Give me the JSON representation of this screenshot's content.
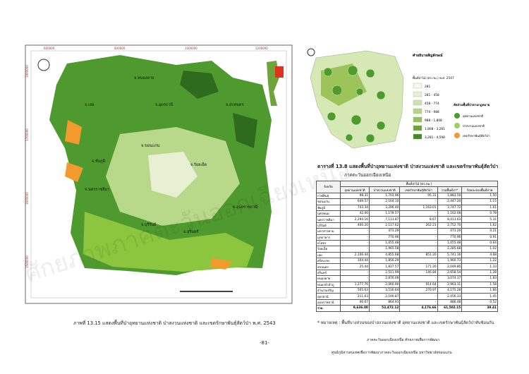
{
  "figure": {
    "caption": "ภาพที่ 13.15 แสดงพื้นที่ป่าอุทยานแห่งชาติ ป่าสงวนแห่งชาติ และเขตรักษาพันธุ์สัตว์ป่า พ.ศ. 2543",
    "coords_top": [
      "600000",
      "800000",
      "1000000",
      "1200000"
    ],
    "coords_left": [
      "1900000",
      "1700000",
      "1600000",
      "1500000"
    ],
    "places": [
      "จ.เลย",
      "จ.หนองคาย",
      "จ.อุดรธานี",
      "จ.สกลนคร",
      "จ.ขอนแก่น",
      "จ.ชัยภูมิ",
      "จ.ร้อยเอ็ด",
      "จ.นครราชสีมา",
      "จ.บุรีรัมย์",
      "จ.สุรินทร์",
      "จ.อุบลราชธานี"
    ]
  },
  "inset": {
    "legend_title": "คำอธิบายสัญลักษณ์",
    "legend_sub": "พื้นที่ป่าไม้ (ตร.กม.) พ.ศ. 2547",
    "ranges": [
      "281",
      "281 - 458",
      "458 - 774",
      "774 - 988",
      "988 - 1,808",
      "1,808 - 3,281",
      "3,281 - 4,598"
    ],
    "pie_title": "สัดส่วนพื้นที่ป่าตามกฎหมาย",
    "pie_items": [
      "อุทยานแห่งชาติ",
      "ป่าสงวนแห่งชาติ",
      "เขตรักษาพันธุ์สัตว์ป่า"
    ]
  },
  "table": {
    "title": "ตารางที่ 13.8 แสดงพื้นที่ป่าอุทยานแห่งชาติ ป่าสงวนแห่งชาติ และเขตรักษาพันธุ์สัตว์ป่า",
    "subtitle": "ภาคตะวันออกเฉียงเหนือ",
    "head1": [
      "จังหวัด",
      "พื้นที่ป่าไม้ (ตร.กม.)"
    ],
    "head2": [
      "อุทยานแห่งชาติ",
      "ป่าสงวนแห่งชาติ",
      "เขตรักษาพันธุ์สัตว์ป่า",
      "รวมพื้นที่ป่า*",
      "ร้อยละของพื้นที่ภาค"
    ],
    "rows": [
      [
        "กาฬสินธุ์",
        "98.31",
        "1,703.96",
        "95.31",
        "1,883.59",
        "1.50"
      ],
      [
        "ขอนแก่น",
        "649.57",
        "2,164.10",
        "-",
        "2,447.20",
        "1.15"
      ],
      [
        "ชัยภูมิ",
        "743.34",
        "3,296.40",
        "1,163.01",
        "3,747.72",
        "1.61"
      ],
      [
        "นครพนม",
        "42.00",
        "1,178.57",
        "-",
        "1,162.08",
        "0.78"
      ],
      [
        "นครราชสีมา",
        "2,294.16",
        "7,113.87",
        "8.67",
        "8,413.63",
        "5.31"
      ],
      [
        "บุรีรัมย์",
        "400.20",
        "2,117.62",
        "262.21",
        "2,752.70",
        "1.62"
      ],
      [
        "มหาสารคาม",
        "-",
        "473.29",
        "-",
        "473.29",
        "0.21"
      ],
      [
        "มุกดาหาร",
        "-",
        "770.96",
        "-",
        "770.96",
        "0.91"
      ],
      [
        "ยโสธร",
        "-",
        "1,055.48",
        "-",
        "1,055.48",
        "0.64"
      ],
      [
        "ร้อยเอ็ด",
        "-",
        "1,965.58",
        "-",
        "2,285.68",
        "1.02"
      ],
      [
        "เลย",
        "2,106.44",
        "4,855.68",
        "851.20",
        "5,741.16",
        "4.68"
      ],
      [
        "ศรีสะเกษ",
        "104.44",
        "1,856.29",
        "-",
        "1,960.73",
        "1.22"
      ],
      [
        "สกลนคร",
        "25.44",
        "1,837.57",
        "171.20",
        "2,049.80",
        "1.33"
      ],
      [
        "สุรินทร์",
        "-",
        "2,511.99",
        "146.84",
        "2,658.54",
        "1.28"
      ],
      [
        "หนองคาย",
        "-",
        "2,876.09",
        "-",
        "3,074.17",
        "1.83"
      ],
      [
        "หนองบัวลำภู",
        "1,277.76",
        "2,060.90",
        "914.64",
        "2,963.31",
        "1.58"
      ],
      [
        "อำนาจเจริญ",
        "505.63",
        "3,516.64",
        "270.97",
        "4,175.28",
        "1.66"
      ],
      [
        "อุดรธานี",
        "211.63",
        "2,190.87",
        "-",
        "2,456.33",
        "1.45"
      ],
      [
        "อุบลราชธานี",
        "46.67",
        "864.93",
        "-",
        "886.48",
        "0.52"
      ],
      [
        "รวม",
        "9,636.00",
        "53,472.12",
        "4,176.66",
        "61,502.15",
        "39.41"
      ]
    ],
    "note": "* หมายเหตุ : พื้นที่บางส่วนของป่าสงวนแห่งชาติ อุทยานแห่งชาติ และเขตรักษาพันธุ์สัตว์ป่าทับซ้อนกัน"
  },
  "footer": {
    "page": "-81-",
    "line1": "ภาคตะวันออกเฉียงเหนือ ศักยภาพเพื่อการพัฒนา",
    "line2": "ศูนย์ภูมิสารสนเทศเพื่อการพัฒนาภาคตะวันออกเฉียงเหนือ มหาวิทยาลัยขอนแก่น"
  },
  "watermark": "ศักยภาพภาคตะวันออกเฉียงเหนือ"
}
